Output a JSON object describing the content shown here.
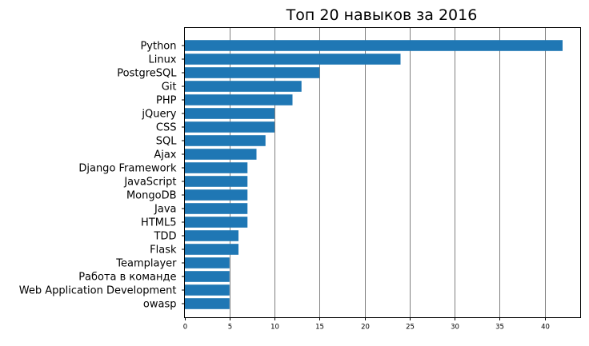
{
  "chart_data": {
    "type": "bar",
    "orientation": "horizontal",
    "title": "Топ 20 навыков за 2016",
    "xlabel": "",
    "ylabel": "",
    "categories": [
      "Python",
      "Linux",
      "PostgreSQL",
      "Git",
      "PHP",
      "jQuery",
      "CSS",
      "SQL",
      "Ajax",
      "Django Framework",
      "JavaScript",
      "MongoDB",
      "Java",
      "HTML5",
      "TDD",
      "Flask",
      "Teamplayer",
      "Работа в команде",
      "Web Application Development",
      "owasp"
    ],
    "values": [
      42,
      24,
      15,
      13,
      12,
      10,
      10,
      9,
      8,
      7,
      7,
      7,
      7,
      7,
      6,
      6,
      5,
      5,
      5,
      5
    ],
    "xlim": [
      0,
      44
    ],
    "xticks": [
      0,
      5,
      10,
      15,
      20,
      25,
      30,
      35,
      40
    ],
    "grid": "vertical",
    "bar_color": "#1f77b4",
    "grid_color": "#808080"
  }
}
